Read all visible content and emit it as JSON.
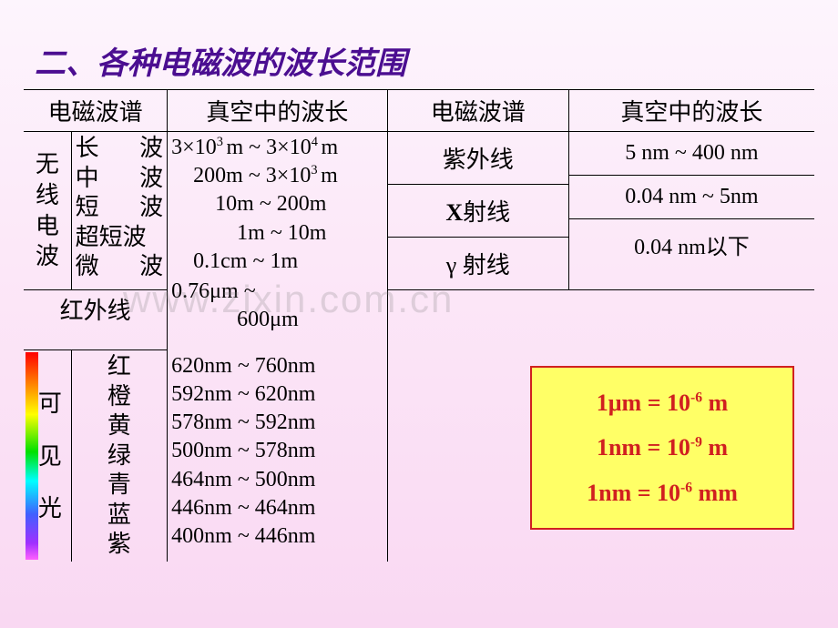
{
  "title": "二、各种电磁波的波长范围",
  "headers": {
    "col1": "电磁波谱",
    "col2": "真空中的波长",
    "col3": "电磁波谱",
    "col4": "真空中的波长"
  },
  "radio": {
    "group": "无线电波",
    "rows": [
      {
        "name": "长　波"
      },
      {
        "name": "中　波"
      },
      {
        "name": "短　波"
      },
      {
        "name": "超短波"
      },
      {
        "name": "微　波"
      }
    ],
    "values_html": "3×10<sup>3 </sup>m ~ 3×10<sup>4 </sup>m<br>　200m ~ 3×10<sup>3 </sup>m<br>　　10m ~ 200m<br>　　　1m ~ 10m<br>　0.1cm ~ 1m"
  },
  "infrared": {
    "name": "红外线",
    "value_html": "0.76μm ~<br>　　　600μm"
  },
  "right_rows": [
    {
      "name": "紫外线",
      "value": "5 nm ~ 400 nm"
    },
    {
      "name_html": "<b>X</b>射线",
      "value": "0.04 nm ~ 5nm"
    },
    {
      "name_html": "γ 射线",
      "value": "0.04 nm以下"
    }
  ],
  "visible": {
    "group": "可　见　光",
    "rows": [
      {
        "name": "红",
        "value": "620nm ~ 760nm"
      },
      {
        "name": "橙",
        "value": "592nm ~ 620nm"
      },
      {
        "name": "黄",
        "value": "578nm ~ 592nm"
      },
      {
        "name": "绿",
        "value": "500nm ~ 578nm"
      },
      {
        "name": "青",
        "value": "464nm ~ 500nm"
      },
      {
        "name": "蓝",
        "value": "446nm ~ 464nm"
      },
      {
        "name": "紫",
        "value": "400nm ~ 446nm"
      }
    ]
  },
  "conversions": [
    "1μm = 10<sup>-6</sup> m",
    "1nm = 10<sup>-9</sup> m",
    "1nm = 10<sup>-6</sup> mm"
  ],
  "watermark": "www.zixin.com.cn"
}
